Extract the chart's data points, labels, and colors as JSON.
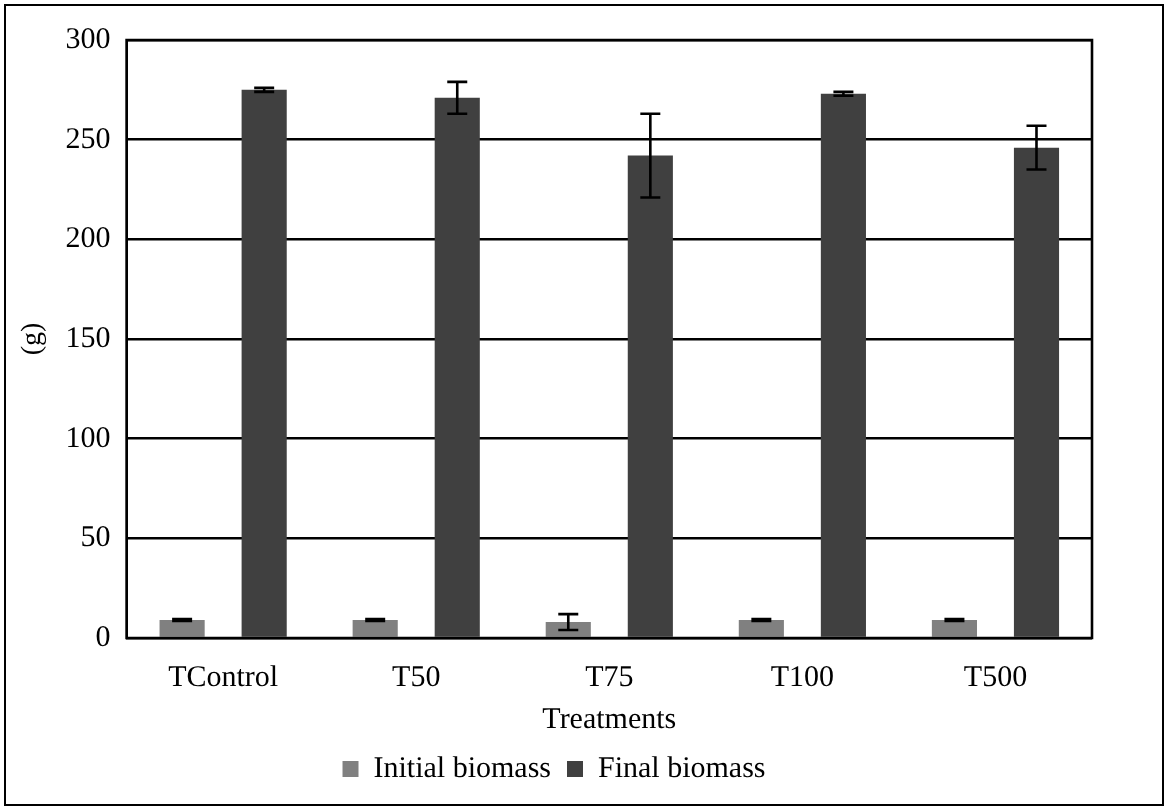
{
  "chart_data": {
    "type": "bar",
    "xlabel": "Treatments",
    "ylabel": "(g)",
    "categories": [
      "TControl",
      "T50",
      "T75",
      "T100",
      "T500"
    ],
    "series": [
      {
        "name": "Initial biomass",
        "color": "#808080",
        "values": [
          9,
          9,
          8,
          9,
          9
        ],
        "errors": [
          0.5,
          0.5,
          4,
          0.5,
          0.5
        ]
      },
      {
        "name": "Final biomass",
        "color": "#404040",
        "values": [
          275,
          271,
          242,
          273,
          246
        ],
        "errors": [
          1,
          8,
          21,
          1,
          11
        ]
      }
    ],
    "ylim": [
      0,
      300
    ],
    "yticks": [
      0,
      50,
      100,
      150,
      200,
      250,
      300
    ],
    "grid": "y",
    "legend": "bottom"
  }
}
